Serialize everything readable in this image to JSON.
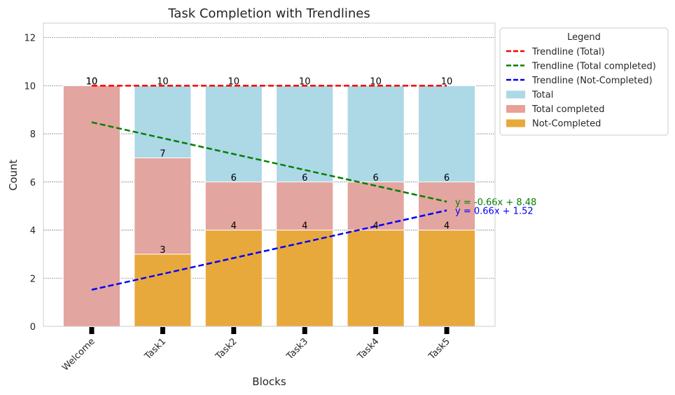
{
  "chart_data": {
    "type": "bar",
    "title": "Task Completion with Trendlines",
    "xlabel": "Blocks",
    "ylabel": "Count",
    "ylim": [
      0,
      12.6
    ],
    "yticks": [
      0,
      2,
      4,
      6,
      8,
      10,
      12
    ],
    "grid": true,
    "categories": [
      "Welcome",
      "Task1",
      "Task2",
      "Task3",
      "Task4",
      "Task5"
    ],
    "series": [
      {
        "name": "Total",
        "color": "#add8e6",
        "values": [
          10,
          10,
          10,
          10,
          10,
          10
        ]
      },
      {
        "name": "Total completed",
        "color": "#e9a097",
        "values": [
          10,
          7,
          6,
          6,
          6,
          6
        ]
      },
      {
        "name": "Not-Completed",
        "color": "#e8a93c",
        "values": [
          0,
          3,
          4,
          4,
          4,
          4
        ]
      }
    ],
    "data_labels": {
      "total": [
        "10",
        "10",
        "10",
        "10",
        "10",
        "10"
      ],
      "completed": [
        "10",
        "7",
        "6",
        "6",
        "6",
        "6"
      ],
      "not_completed": [
        "",
        "3",
        "4",
        "4",
        "4",
        "4"
      ]
    },
    "trendlines": [
      {
        "name": "Trendline (Total)",
        "color": "#ff0000",
        "slope": 0,
        "intercept": 10,
        "equation": ""
      },
      {
        "name": "Trendline (Total completed)",
        "color": "#008000",
        "slope": -0.66,
        "intercept": 8.48,
        "equation": "y = -0.66x + 8.48"
      },
      {
        "name": "Trendline (Not-Completed)",
        "color": "#0000ff",
        "slope": 0.66,
        "intercept": 1.52,
        "equation": "y = 0.66x + 1.52"
      }
    ],
    "legend": {
      "title": "Legend",
      "position": "upper right outside",
      "entries": [
        {
          "label": "Trendline (Total)",
          "kind": "line",
          "color": "#ff0000"
        },
        {
          "label": "Trendline (Total completed)",
          "kind": "line",
          "color": "#008000"
        },
        {
          "label": "Trendline (Not-Completed)",
          "kind": "line",
          "color": "#0000ff"
        },
        {
          "label": "Total",
          "kind": "patch",
          "color": "#add8e6"
        },
        {
          "label": "Total completed",
          "kind": "patch",
          "color": "#e9a097"
        },
        {
          "label": "Not-Completed",
          "kind": "patch",
          "color": "#e8a93c"
        }
      ]
    }
  }
}
